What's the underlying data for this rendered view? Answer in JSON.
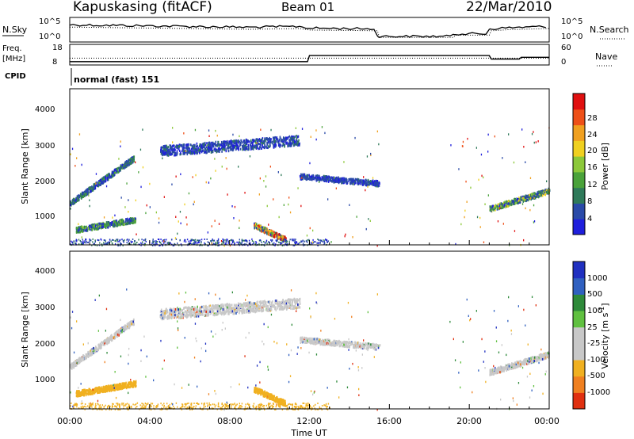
{
  "header": {
    "title": "Kapuskasing (fitACF)",
    "beam": "Beam 01",
    "date": "22/Mar/2010"
  },
  "strip": {
    "nsky_label": "N.Sky",
    "nsearch_label": "N.Search",
    "nsky_ticks": [
      "10^5",
      "10^0"
    ],
    "nsearch_ticks": [
      "10^5",
      "10^0"
    ],
    "freq_label_top": "Freq.",
    "freq_label_unit": "[MHz]",
    "freq_ticks": [
      "18",
      "8"
    ],
    "nave_label": "Nave",
    "nave_ticks": [
      "60",
      "0"
    ],
    "cpid_label": "CPID",
    "cpid_value": "normal (fast) 151"
  },
  "power_panel": {
    "ylabel": "Slant Range [km]",
    "yticks": [
      "4000",
      "3000",
      "2000",
      "1000"
    ],
    "colorbar_label": "Power [dB]",
    "colorbar_ticks": [
      "28",
      "24",
      "20",
      "16",
      "12",
      "8",
      "4"
    ],
    "colors": [
      "#1f1fdc",
      "#2a4aa8",
      "#2f7a5a",
      "#4aa23a",
      "#8cc83a",
      "#f0d020",
      "#f0a020",
      "#ee5018",
      "#e01010"
    ]
  },
  "velocity_panel": {
    "ylabel": "Slant Range [km]",
    "yticks": [
      "4000",
      "3000",
      "2000",
      "1000"
    ],
    "colorbar_label": "Velocity [m s",
    "colorbar_label_sup": "-1",
    "colorbar_label_end": "]",
    "colorbar_ticks": [
      "1000",
      "500",
      "100",
      "25",
      "-25",
      "-100",
      "-500",
      "-1000"
    ],
    "colors": [
      "#2030c0",
      "#3060c0",
      "#2e8a3a",
      "#60c040",
      "#c8c8c8",
      "#c8c8c8",
      "#f0b020",
      "#f08020",
      "#e03010"
    ]
  },
  "xaxis": {
    "label": "Time UT",
    "ticks": [
      "00:00",
      "04:00",
      "08:00",
      "12:00",
      "16:00",
      "20:00",
      "00:00"
    ]
  },
  "chart_data": {
    "type": "heatmap",
    "xrange_hours": [
      0,
      24
    ],
    "yrange_km": [
      180,
      4500
    ],
    "nsky_level": [
      [
        0,
        3.6
      ],
      [
        3,
        3.4
      ],
      [
        6,
        3.2
      ],
      [
        9,
        3.0
      ],
      [
        11.5,
        3.2
      ],
      [
        12,
        2.8
      ],
      [
        15.4,
        2.6
      ],
      [
        15.5,
        0.8
      ],
      [
        19.2,
        0.8
      ],
      [
        19.3,
        1.4
      ],
      [
        21,
        1.4
      ],
      [
        21.1,
        2.6
      ],
      [
        22,
        2.9
      ],
      [
        24,
        3.2
      ]
    ],
    "freq_mhz": [
      [
        0,
        9.0
      ],
      [
        11.9,
        9.0
      ],
      [
        12.0,
        12.5
      ],
      [
        21.0,
        12.5
      ],
      [
        21.1,
        10.5
      ],
      [
        22.5,
        10.5
      ],
      [
        22.6,
        11.5
      ],
      [
        24,
        11.5
      ]
    ],
    "nave_line": 18,
    "power_regions": [
      {
        "name": "E-region",
        "t_start": 9.2,
        "t_end": 10.8,
        "r_start": 750,
        "r_end": 350,
        "peak_db": 28
      },
      {
        "name": "near-range",
        "t_start": 0.3,
        "t_end": 3.3,
        "r_start": 620,
        "r_end": 900,
        "peak_db": 14
      },
      {
        "name": "F-region morning",
        "t_start": 0,
        "t_end": 3.2,
        "r_start": 1350,
        "r_end": 2600,
        "peak_db": 10
      },
      {
        "name": "F-region midday",
        "t_start": 4.5,
        "t_end": 11.5,
        "r_start": 2800,
        "r_end": 3100,
        "peak_db": 6
      },
      {
        "name": "F-region afternoon",
        "t_start": 11.5,
        "t_end": 15.5,
        "r_start": 2100,
        "r_end": 1900,
        "peak_db": 6
      },
      {
        "name": "F-region evening",
        "t_start": 21,
        "t_end": 24,
        "r_start": 1200,
        "r_end": 1700,
        "peak_db": 18
      }
    ]
  }
}
